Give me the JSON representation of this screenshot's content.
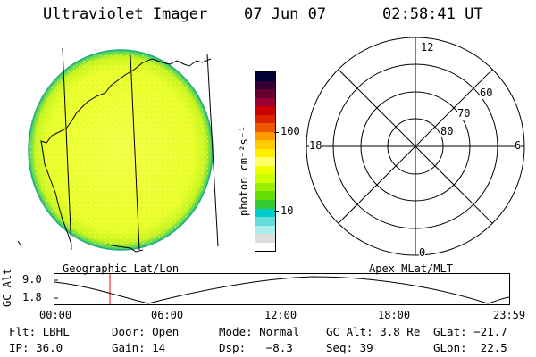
{
  "header": {
    "instrument": "Ultraviolet Imager",
    "date": "07 Jun 07",
    "time": "02:58:41 UT"
  },
  "colorbar": {
    "unit_label": "photon cm⁻²s⁻¹",
    "ticks": [
      "100",
      "10"
    ],
    "colors": [
      "#000033",
      "#330033",
      "#660033",
      "#990033",
      "#cc0000",
      "#dd2200",
      "#ee5500",
      "#ff9900",
      "#ffcc00",
      "#ffee00",
      "#ffff66",
      "#eeff00",
      "#ccff00",
      "#99ee00",
      "#66dd00",
      "#33cc33",
      "#00cccc",
      "#66dddd",
      "#aaeeee",
      "#dddddd",
      "#ffffff"
    ]
  },
  "left_panel": {
    "caption": "Geographic Lat/Lon"
  },
  "right_panel": {
    "caption": "Apex MLat/MLT",
    "mlt_labels": {
      "top": "12",
      "bottom": "0",
      "left": "18",
      "right": "6"
    },
    "lat_labels": [
      "60",
      "70",
      "80"
    ]
  },
  "altitude_plot": {
    "ylabel": "GC Alt",
    "yticks": [
      "9.0",
      "1.8"
    ],
    "xticks": [
      "00:00",
      "06:00",
      "12:00",
      "18:00",
      "23:59"
    ]
  },
  "info": {
    "row1": {
      "filter": "Flt: LBHL",
      "door": "Door: Open",
      "mode": "Mode: Normal",
      "gc_alt": "GC Alt: 3.8 Re",
      "glat": "GLat: −21.7"
    },
    "row2": {
      "ip": "IP: 36.0",
      "gain": "Gain: 14",
      "dsp": "Dsp:   −8.3",
      "seq": "Seq: 39",
      "glon": "GLon:  22.5"
    }
  }
}
